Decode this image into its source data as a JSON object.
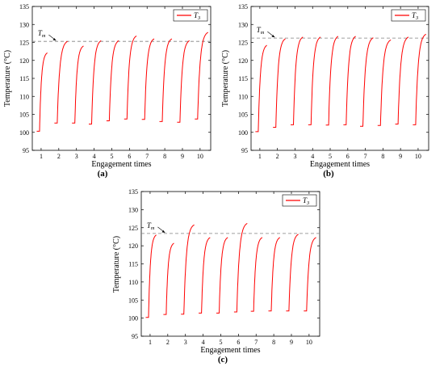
{
  "chart_data": [
    {
      "type": "line",
      "panel_label": "(a)",
      "xlabel": "Engagement times",
      "ylabel": "Temperature (°C)",
      "xticks": [
        "1",
        "2",
        "3",
        "4",
        "5",
        "6",
        "7",
        "8",
        "9",
        "10"
      ],
      "ylim": [
        95,
        135
      ],
      "yticks": [
        95,
        100,
        105,
        110,
        115,
        120,
        125,
        130,
        135
      ],
      "legend": {
        "label": "T3",
        "main": "T",
        "sub": "3",
        "position": "top-right"
      },
      "reference_line": {
        "label": "Tm",
        "main": "T",
        "sub": "m",
        "value": 125.3
      },
      "cycles": [
        {
          "x0": 0.75,
          "t1": 1.35,
          "start": 100.3,
          "end": 122.1
        },
        {
          "x0": 1.75,
          "t1": 2.5,
          "start": 102.6,
          "end": 125.3
        },
        {
          "x0": 2.75,
          "t1": 3.4,
          "start": 102.6,
          "end": 124.0
        },
        {
          "x0": 3.7,
          "t1": 4.4,
          "start": 102.3,
          "end": 125.5
        },
        {
          "x0": 4.7,
          "t1": 5.4,
          "start": 103.2,
          "end": 125.5
        },
        {
          "x0": 5.7,
          "t1": 6.4,
          "start": 103.7,
          "end": 126.8
        },
        {
          "x0": 6.7,
          "t1": 7.4,
          "start": 103.6,
          "end": 126.0
        },
        {
          "x0": 7.7,
          "t1": 8.4,
          "start": 103.0,
          "end": 126.0
        },
        {
          "x0": 8.7,
          "t1": 9.4,
          "start": 102.8,
          "end": 125.5
        },
        {
          "x0": 9.7,
          "t1": 10.45,
          "start": 103.7,
          "end": 127.8
        }
      ]
    },
    {
      "type": "line",
      "panel_label": "(b)",
      "xlabel": "Engagement times",
      "ylabel": "Temperature (°C)",
      "xticks": [
        "1",
        "2",
        "3",
        "4",
        "5",
        "6",
        "7",
        "8",
        "9",
        "10"
      ],
      "ylim": [
        95,
        135
      ],
      "yticks": [
        95,
        100,
        105,
        110,
        115,
        120,
        125,
        130,
        135
      ],
      "legend": {
        "label": "T3",
        "main": "T",
        "sub": "3",
        "position": "top-right"
      },
      "reference_line": {
        "label": "Tm",
        "main": "T",
        "sub": "m",
        "value": 126.2
      },
      "cycles": [
        {
          "x0": 0.75,
          "t1": 1.4,
          "start": 100.2,
          "end": 124.2
        },
        {
          "x0": 1.75,
          "t1": 2.45,
          "start": 101.4,
          "end": 126.0
        },
        {
          "x0": 2.75,
          "t1": 3.45,
          "start": 102.1,
          "end": 126.5
        },
        {
          "x0": 3.75,
          "t1": 4.45,
          "start": 102.1,
          "end": 126.5
        },
        {
          "x0": 4.75,
          "t1": 5.45,
          "start": 102.0,
          "end": 126.7
        },
        {
          "x0": 5.75,
          "t1": 6.45,
          "start": 102.1,
          "end": 126.7
        },
        {
          "x0": 6.7,
          "t1": 7.45,
          "start": 101.7,
          "end": 126.3
        },
        {
          "x0": 7.7,
          "t1": 8.45,
          "start": 101.9,
          "end": 125.7
        },
        {
          "x0": 8.7,
          "t1": 9.45,
          "start": 102.3,
          "end": 126.5
        },
        {
          "x0": 9.7,
          "t1": 10.45,
          "start": 102.1,
          "end": 127.3
        }
      ]
    },
    {
      "type": "line",
      "panel_label": "(c)",
      "xlabel": "Engagement times",
      "ylabel": "Temperature (°C)",
      "xticks": [
        "1",
        "2",
        "3",
        "4",
        "5",
        "6",
        "7",
        "8",
        "9",
        "10"
      ],
      "ylim": [
        95,
        135
      ],
      "yticks": [
        95,
        100,
        105,
        110,
        115,
        120,
        125,
        130,
        135
      ],
      "legend": {
        "label": "T3",
        "main": "T",
        "sub": "3",
        "position": "top-right"
      },
      "reference_line": {
        "label": "Tm",
        "main": "T",
        "sub": "m",
        "value": 123.4
      },
      "cycles": [
        {
          "x0": 0.75,
          "t1": 1.35,
          "start": 100.2,
          "end": 123.0
        },
        {
          "x0": 1.75,
          "t1": 2.35,
          "start": 101.0,
          "end": 120.7
        },
        {
          "x0": 2.75,
          "t1": 3.5,
          "start": 101.1,
          "end": 125.8
        },
        {
          "x0": 3.75,
          "t1": 4.4,
          "start": 101.4,
          "end": 122.3
        },
        {
          "x0": 4.75,
          "t1": 5.4,
          "start": 101.4,
          "end": 122.3
        },
        {
          "x0": 5.75,
          "t1": 6.5,
          "start": 101.7,
          "end": 126.2
        },
        {
          "x0": 6.7,
          "t1": 7.35,
          "start": 101.9,
          "end": 122.3
        },
        {
          "x0": 7.7,
          "t1": 8.35,
          "start": 102.0,
          "end": 122.3
        },
        {
          "x0": 8.7,
          "t1": 9.4,
          "start": 102.0,
          "end": 123.2
        },
        {
          "x0": 9.7,
          "t1": 10.4,
          "start": 102.0,
          "end": 122.3
        }
      ]
    }
  ],
  "colors": {
    "series": "#ff0000",
    "reference": "#808080",
    "axis": "#000000"
  }
}
